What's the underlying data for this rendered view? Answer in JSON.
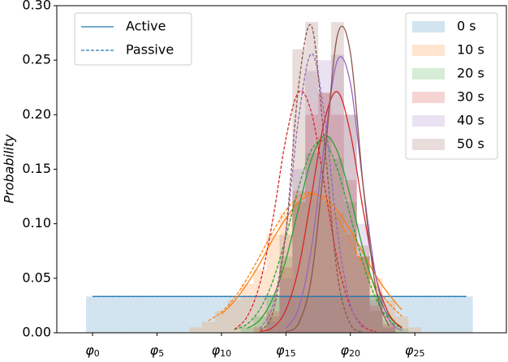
{
  "chart_data": {
    "type": "histogram",
    "ylabel": "Probability",
    "bins": [
      -0.5,
      0.5,
      1.5,
      2.5,
      3.5,
      4.5,
      5.5,
      6.5,
      7.5,
      8.5,
      9.5,
      10.5,
      11.5,
      12.5,
      13.5,
      14.5,
      15.5,
      16.5,
      17.5,
      18.5,
      19.5,
      20.5,
      21.5,
      22.5,
      23.5,
      24.5,
      25.5,
      26.5,
      27.5,
      28.5,
      29.5
    ],
    "bar_opacity": 0.2,
    "line_styles": [
      {
        "name": "Active",
        "dash": "solid"
      },
      {
        "name": "Passive",
        "dash": "dashed"
      }
    ],
    "line_legend_color": "#1f77b4",
    "line_legend": "upper left",
    "legend": "upper right",
    "series": [
      {
        "name": "0 s",
        "color": "#1f77b4",
        "values": [
          0.0333,
          0.0333,
          0.0333,
          0.0333,
          0.0333,
          0.0333,
          0.0333,
          0.0333,
          0.0333,
          0.0333,
          0.0333,
          0.0333,
          0.0333,
          0.0333,
          0.0333,
          0.0333,
          0.0333,
          0.0333,
          0.0333,
          0.0333,
          0.0333,
          0.0333,
          0.0333,
          0.0333,
          0.0333,
          0.0333,
          0.0333,
          0.0333,
          0.0333,
          0.0333
        ],
        "curves": [
          {
            "x": [
              0,
              29
            ],
            "values": [
              0.0333,
              0.0333
            ]
          },
          {
            "x": [
              0,
              29
            ],
            "values": [
              0.0333,
              0.0333
            ]
          }
        ]
      },
      {
        "name": "10 s",
        "color": "#ff7f0e",
        "values": [
          0,
          0,
          0,
          0,
          0,
          0,
          0,
          0,
          0.005,
          0.01,
          0.02,
          0.03,
          0.045,
          0.058,
          0.09,
          0.11,
          0.12,
          0.13,
          0.12,
          0.11,
          0.09,
          0.07,
          0.05,
          0.03,
          0.015,
          0.005,
          0,
          0,
          0,
          0
        ],
        "curves": [
          {
            "x": [
              10,
              11,
              12,
              13,
              14,
              15,
              16,
              17,
              18,
              19,
              20,
              21,
              22,
              23,
              24
            ],
            "values": [
              0.017,
              0.029,
              0.045,
              0.064,
              0.086,
              0.105,
              0.12,
              0.127,
              0.124,
              0.112,
              0.094,
              0.073,
              0.052,
              0.035,
              0.021
            ]
          },
          {
            "x": [
              9,
              10,
              11,
              12,
              13,
              14,
              15,
              16,
              17,
              18,
              19,
              20,
              21,
              22,
              23,
              24
            ],
            "values": [
              0.011,
              0.019,
              0.032,
              0.05,
              0.071,
              0.093,
              0.112,
              0.125,
              0.128,
              0.121,
              0.105,
              0.084,
              0.062,
              0.042,
              0.027,
              0.015
            ]
          }
        ]
      },
      {
        "name": "20 s",
        "color": "#2ca02c",
        "values": [
          0,
          0,
          0,
          0,
          0,
          0,
          0,
          0,
          0,
          0,
          0,
          0,
          0.005,
          0.015,
          0.035,
          0.07,
          0.12,
          0.165,
          0.18,
          0.16,
          0.12,
          0.07,
          0.035,
          0.012,
          0.004,
          0,
          0,
          0,
          0,
          0
        ],
        "curves": [
          {
            "x": [
              12,
              13,
              14,
              15,
              16,
              17,
              18,
              19,
              20,
              21,
              22,
              23,
              24
            ],
            "values": [
              0.004,
              0.012,
              0.032,
              0.067,
              0.115,
              0.16,
              0.181,
              0.166,
              0.125,
              0.076,
              0.038,
              0.015,
              0.005
            ]
          },
          {
            "x": [
              11,
              12,
              13,
              14,
              15,
              16,
              17,
              18,
              19,
              20,
              21,
              22,
              23,
              24
            ],
            "values": [
              0.003,
              0.008,
              0.022,
              0.048,
              0.088,
              0.134,
              0.168,
              0.175,
              0.15,
              0.107,
              0.063,
              0.031,
              0.012,
              0.004
            ]
          }
        ]
      },
      {
        "name": "30 s",
        "color": "#d62728",
        "values": [
          0,
          0,
          0,
          0,
          0,
          0,
          0,
          0,
          0,
          0,
          0,
          0,
          0,
          0.005,
          0.02,
          0.06,
          0.13,
          0.2,
          0.22,
          0.2,
          0.14,
          0.07,
          0.025,
          0.008,
          0,
          0,
          0,
          0,
          0,
          0
        ],
        "curves": [
          {
            "x": [
              13,
              14,
              15,
              16,
              17,
              18,
              19,
              20,
              21,
              22,
              23,
              24
            ],
            "values": [
              0.001,
              0.005,
              0.021,
              0.06,
              0.127,
              0.195,
              0.221,
              0.183,
              0.112,
              0.05,
              0.017,
              0.004
            ]
          },
          {
            "x": [
              11,
              12,
              13,
              14,
              15,
              16,
              17,
              18,
              19,
              20,
              21,
              22
            ],
            "values": [
              0.003,
              0.015,
              0.046,
              0.105,
              0.178,
              0.221,
              0.201,
              0.135,
              0.066,
              0.024,
              0.006,
              0.001
            ]
          }
        ]
      },
      {
        "name": "40 s",
        "color": "#9467bd",
        "values": [
          0,
          0,
          0,
          0,
          0,
          0,
          0,
          0,
          0,
          0,
          0,
          0,
          0,
          0,
          0.01,
          0.05,
          0.15,
          0.24,
          0.25,
          0.255,
          0.2,
          0.1,
          0.03,
          0.005,
          0,
          0,
          0,
          0,
          0,
          0
        ],
        "curves": [
          {
            "x": [
              15,
              16,
              17,
              18,
              19,
              20,
              21,
              22,
              23,
              24
            ],
            "values": [
              0.004,
              0.023,
              0.079,
              0.175,
              0.25,
              0.229,
              0.134,
              0.05,
              0.012,
              0.002
            ]
          },
          {
            "x": [
              13,
              14,
              15,
              16,
              17,
              18,
              19,
              20,
              21
            ],
            "values": [
              0.004,
              0.026,
              0.092,
              0.198,
              0.256,
              0.198,
              0.092,
              0.026,
              0.004
            ]
          }
        ]
      },
      {
        "name": "50 s",
        "color": "#8c564b",
        "values": [
          0,
          0,
          0,
          0,
          0,
          0,
          0,
          0,
          0,
          0,
          0,
          0,
          0,
          0,
          0.015,
          0.09,
          0.26,
          0.285,
          0.22,
          0.285,
          0.2,
          0.08,
          0.02,
          0.005,
          0,
          0,
          0,
          0,
          0,
          0
        ],
        "curves": [
          {
            "x": [
              15,
              16,
              17,
              18,
              19,
              20,
              21,
              22,
              23
            ],
            "values": [
              0.001,
              0.009,
              0.052,
              0.16,
              0.273,
              0.257,
              0.134,
              0.039,
              0.006
            ]
          },
          {
            "x": [
              13,
              14,
              15,
              16,
              17,
              18,
              19,
              20,
              21
            ],
            "values": [
              0.002,
              0.019,
              0.093,
              0.228,
              0.281,
              0.173,
              0.053,
              0.008,
              0.001
            ]
          }
        ]
      }
    ],
    "xlim": [
      -2.77,
      32.1
    ],
    "xticks": [
      {
        "value": 0,
        "label": "φ0"
      },
      {
        "value": 5,
        "label": "φ5"
      },
      {
        "value": 10,
        "label": "φ10"
      },
      {
        "value": 15,
        "label": "φ15"
      },
      {
        "value": 20,
        "label": "φ20"
      },
      {
        "value": 25,
        "label": "φ25"
      }
    ],
    "ylim": [
      0,
      0.3
    ],
    "yticks": [
      {
        "value": 0,
        "label": "0.00"
      },
      {
        "value": 0.05,
        "label": "0.05"
      },
      {
        "value": 0.1,
        "label": "0.10"
      },
      {
        "value": 0.15,
        "label": "0.15"
      },
      {
        "value": 0.2,
        "label": "0.20"
      },
      {
        "value": 0.25,
        "label": "0.25"
      },
      {
        "value": 0.3,
        "label": "0.30"
      }
    ]
  }
}
